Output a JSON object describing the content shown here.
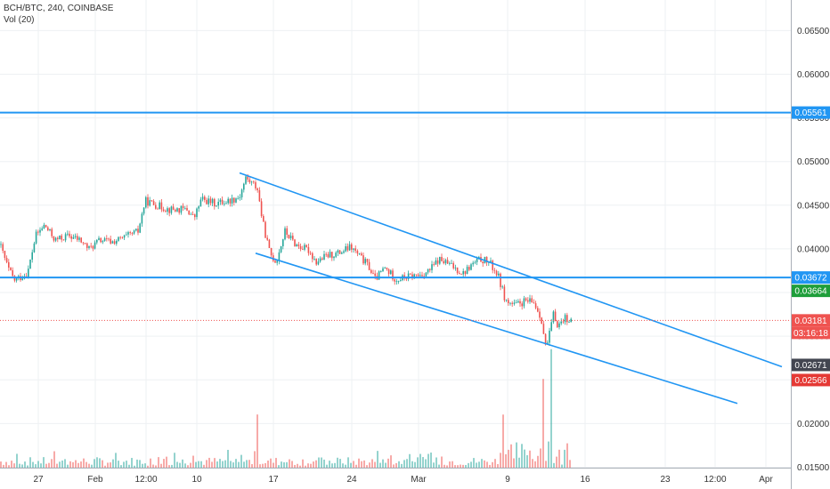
{
  "legend": {
    "symbol": "BCH/BTC, 240, COINBASE",
    "volume": "Vol (20)"
  },
  "colors": {
    "up": "#26a69a",
    "down": "#ef5350",
    "line": "#2196f3",
    "grid": "#eef0f3",
    "price_line": "#ef5350"
  },
  "chart_data": {
    "type": "candlestick",
    "title": "",
    "price_axis": {
      "min": 0.0125,
      "max": 0.0685,
      "ticks": [
        "0.06500",
        "0.06000",
        "0.05500",
        "0.05000",
        "0.04500",
        "0.04000",
        "0.03500",
        "0.03000",
        "0.02500",
        "0.02000",
        "0.01500"
      ]
    },
    "time_axis": {
      "labels": [
        "27",
        "Feb",
        "12:00",
        "10",
        "17",
        "24",
        "Mar",
        "9",
        "16",
        "23",
        "12:00",
        "Apr"
      ]
    },
    "horizontal_levels": [
      0.05561,
      0.03672
    ],
    "trend_channel": [
      {
        "name": "upper",
        "from": {
          "date": "Feb 13",
          "price": 0.0487
        },
        "to": {
          "date": "Mar 30",
          "price": 0.0265
        }
      },
      {
        "name": "lower",
        "from": {
          "date": "Feb 15",
          "price": 0.0395
        },
        "to": {
          "date": "Mar 27",
          "price": 0.0223
        }
      }
    ],
    "price_labels": [
      {
        "text": "0.05561",
        "price": 0.05561,
        "kind": "line"
      },
      {
        "text": "0.03672",
        "price": 0.03672,
        "kind": "line"
      },
      {
        "text": "0.03664",
        "price": 0.03664,
        "kind": "up"
      },
      {
        "text": "0.03181",
        "price": 0.03181,
        "kind": "current"
      },
      {
        "text": "03:16:18",
        "price": 0.03181,
        "kind": "countdown"
      },
      {
        "text": "0.02671",
        "price": 0.02671,
        "kind": "dark"
      },
      {
        "text": "0.02566",
        "price": 0.02566,
        "kind": "down"
      }
    ],
    "current_price": 0.03181,
    "series": [
      {
        "name": "price",
        "close_path": [
          [
            0,
            0.0405
          ],
          [
            9,
            0.0378
          ],
          [
            16,
            0.0364
          ],
          [
            31,
            0.0372
          ],
          [
            40,
            0.0415
          ],
          [
            50,
            0.0427
          ],
          [
            62,
            0.041
          ],
          [
            77,
            0.0415
          ],
          [
            90,
            0.041
          ],
          [
            100,
            0.04
          ],
          [
            112,
            0.041
          ],
          [
            126,
            0.0408
          ],
          [
            140,
            0.0413
          ],
          [
            155,
            0.042
          ],
          [
            163,
            0.0455
          ],
          [
            176,
            0.045
          ],
          [
            190,
            0.0445
          ],
          [
            210,
            0.0445
          ],
          [
            218,
            0.0435
          ],
          [
            226,
            0.0457
          ],
          [
            241,
            0.0452
          ],
          [
            257,
            0.0455
          ],
          [
            269,
            0.046
          ],
          [
            276,
            0.0481
          ],
          [
            289,
            0.047
          ],
          [
            295,
            0.043
          ],
          [
            303,
            0.0395
          ],
          [
            310,
            0.0385
          ],
          [
            320,
            0.042
          ],
          [
            332,
            0.0405
          ],
          [
            347,
            0.0398
          ],
          [
            355,
            0.0385
          ],
          [
            367,
            0.0392
          ],
          [
            380,
            0.0395
          ],
          [
            394,
            0.0402
          ],
          [
            405,
            0.039
          ],
          [
            414,
            0.038
          ],
          [
            421,
            0.0365
          ],
          [
            432,
            0.0378
          ],
          [
            445,
            0.0365
          ],
          [
            458,
            0.0368
          ],
          [
            471,
            0.037
          ],
          [
            482,
            0.0375
          ],
          [
            493,
            0.0388
          ],
          [
            508,
            0.038
          ],
          [
            520,
            0.0372
          ],
          [
            530,
            0.0382
          ],
          [
            540,
            0.0388
          ],
          [
            549,
            0.0385
          ],
          [
            559,
            0.037
          ],
          [
            568,
            0.034
          ],
          [
            578,
            0.0335
          ],
          [
            590,
            0.034
          ],
          [
            600,
            0.0338
          ],
          [
            608,
            0.032
          ],
          [
            613,
            0.0285
          ],
          [
            617,
            0.0302
          ],
          [
            621,
            0.0325
          ],
          [
            627,
            0.0312
          ],
          [
            634,
            0.0322
          ],
          [
            641,
            0.0318
          ]
        ]
      },
      {
        "name": "Vol (20)",
        "peaks": [
          {
            "date": "Mar 12",
            "relative": 1.0
          },
          {
            "date": "Mar 11",
            "relative": 0.68
          },
          {
            "date": "Feb 16",
            "relative": 0.46
          },
          {
            "date": "Mar 8",
            "relative": 0.42
          }
        ]
      }
    ]
  }
}
